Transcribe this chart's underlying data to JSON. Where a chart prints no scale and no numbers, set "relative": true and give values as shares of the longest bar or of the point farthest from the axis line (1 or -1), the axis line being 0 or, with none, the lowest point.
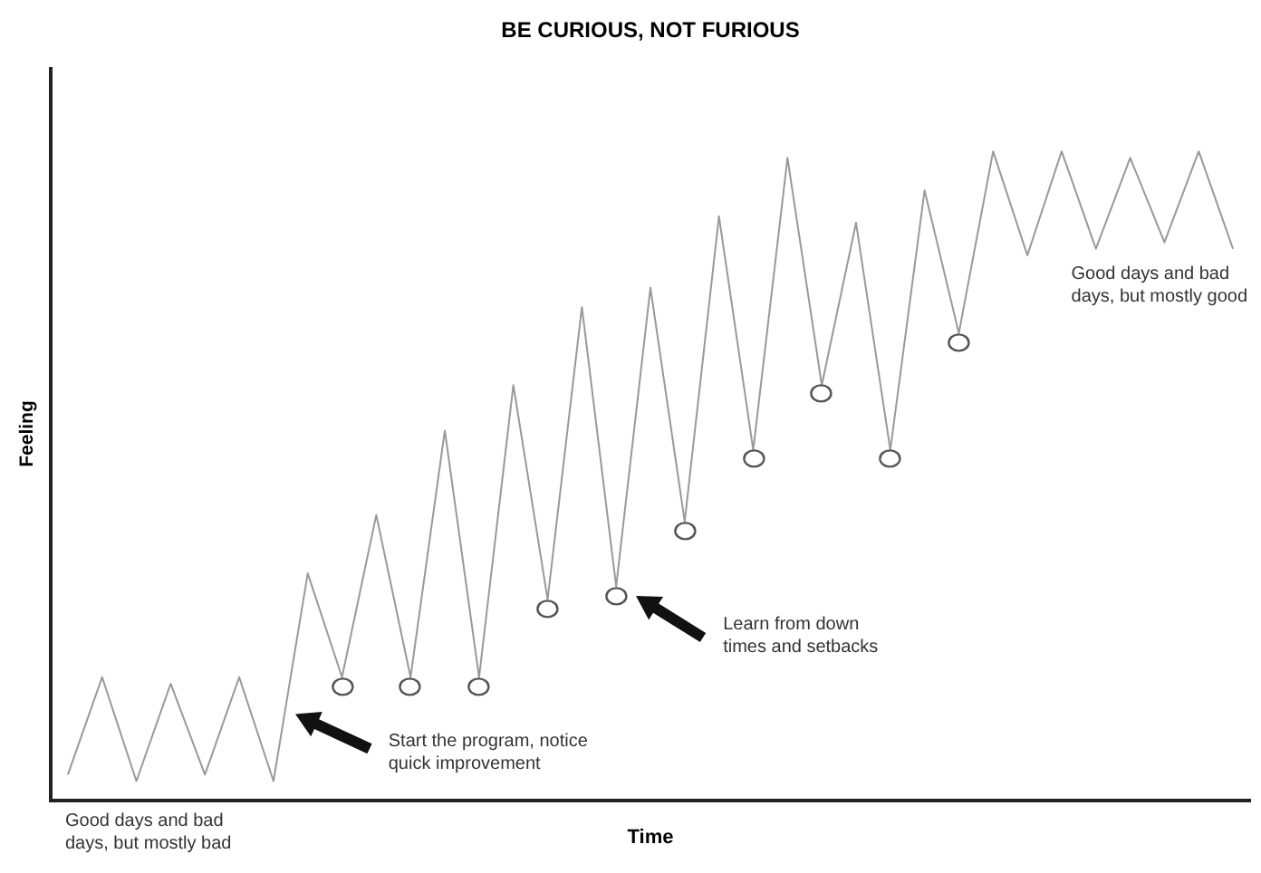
{
  "chart_data": {
    "type": "line",
    "title": "BE CURIOUS, NOT FURIOUS",
    "xlabel": "Time",
    "ylabel": "Feeling",
    "relative": true,
    "categories": [
      null,
      null,
      null,
      null,
      null,
      null,
      null,
      null,
      null,
      null,
      null,
      null,
      null,
      null,
      null,
      null,
      null,
      null,
      null,
      null,
      null,
      null,
      null,
      null,
      null,
      null,
      null,
      null,
      null,
      null,
      null,
      null,
      null,
      null,
      null
    ],
    "series": [
      {
        "type": "line",
        "color": "#999999",
        "values": [
          0.04,
          0.19,
          0.03,
          0.18,
          0.04,
          0.19,
          0.03,
          0.35,
          0.19,
          0.44,
          0.19,
          0.57,
          0.19,
          0.64,
          0.31,
          0.76,
          0.33,
          0.79,
          0.43,
          0.9,
          0.54,
          0.99,
          0.64,
          0.89,
          0.54,
          0.94,
          0.72,
          1,
          0.84,
          1,
          0.85,
          0.99,
          0.86,
          1,
          0.85
        ]
      }
    ],
    "annotations": [
      "Good days and bad days, but mostly bad",
      "Start the program, notice quick improvement",
      "Learn from down times and setbacks",
      "Good days and bad days, but mostly good"
    ]
  }
}
